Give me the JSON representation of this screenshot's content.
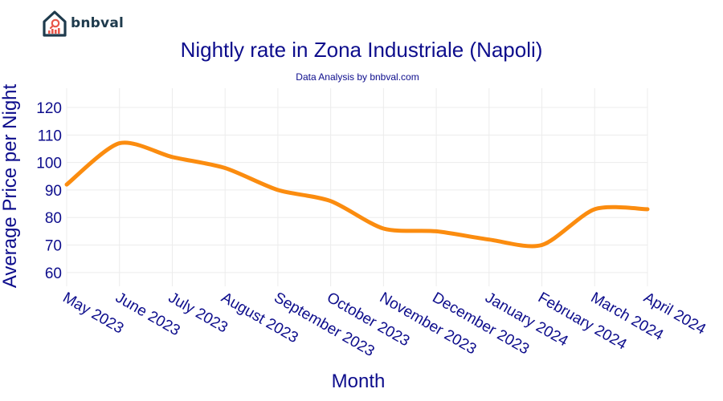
{
  "brand": {
    "name": "bnbval",
    "logo_color": "#1f3b4d",
    "logo_accent": "#e8574a"
  },
  "chart_data": {
    "type": "line",
    "title": "Nightly rate in Zona Industriale (Napoli)",
    "subtitle": "Data Analysis by bnbval.com",
    "xlabel": "Month",
    "ylabel": "Average Price per Night",
    "categories": [
      "May 2023",
      "June 2023",
      "July 2023",
      "August 2023",
      "September 2023",
      "October 2023",
      "November 2023",
      "December 2023",
      "January 2024",
      "February 2024",
      "March 2024",
      "April 2024"
    ],
    "series": [
      {
        "name": "Average Price per Night",
        "color": "#fb8c0f",
        "values": [
          92,
          107,
          102,
          98,
          90,
          86,
          76,
          75,
          72,
          70,
          83,
          83
        ]
      }
    ],
    "yticks": [
      60,
      70,
      80,
      90,
      100,
      110,
      120
    ],
    "ylim": [
      55,
      127
    ],
    "grid": true,
    "legend": "none"
  }
}
